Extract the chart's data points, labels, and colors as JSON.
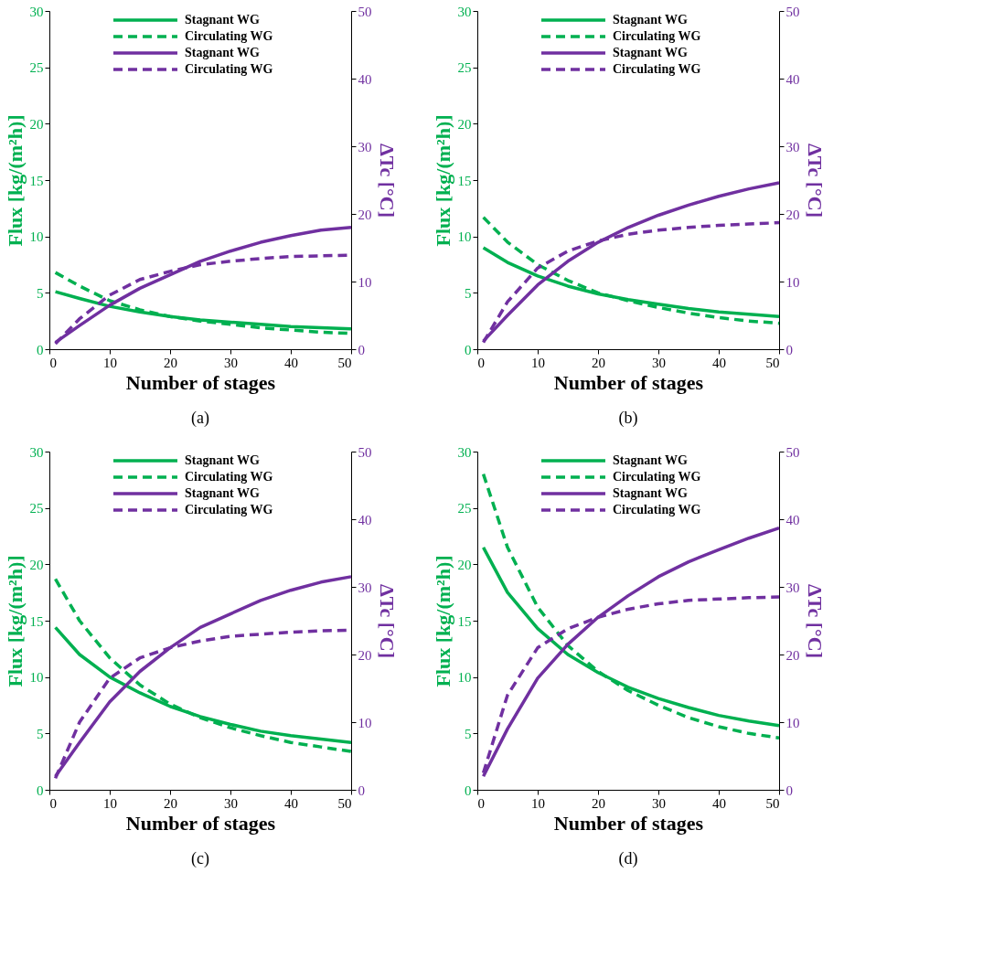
{
  "chart_data": [
    {
      "type": "line",
      "xlabel": "Number of stages",
      "ylabel": "Flux [kg/(m²h)]",
      "y2label": "ΔTc [°C]",
      "annotations": [
        "(a)"
      ],
      "x": [
        1,
        5,
        10,
        15,
        20,
        25,
        30,
        35,
        40,
        45,
        50
      ],
      "xlim": [
        0,
        50
      ],
      "xticks": [
        0,
        10,
        20,
        30,
        40,
        50
      ],
      "ylim": [
        0,
        30
      ],
      "yticks": [
        0,
        5,
        10,
        15,
        20,
        25,
        30
      ],
      "y2lim": [
        0,
        50
      ],
      "y2ticks": [
        0,
        10,
        20,
        30,
        40,
        50
      ],
      "grid": false,
      "legend": "top",
      "series": [
        {
          "name": "Stagnant WG",
          "color": "#00b050",
          "line_style": "solid",
          "values": [
            5.1,
            4.5,
            3.8,
            3.3,
            2.9,
            2.6,
            2.4,
            2.2,
            2.0,
            1.9,
            1.8
          ]
        },
        {
          "name": "Circulating WG",
          "color": "#00b050",
          "line_style": "dashed",
          "values": [
            6.8,
            5.6,
            4.3,
            3.5,
            2.9,
            2.5,
            2.2,
            1.9,
            1.7,
            1.5,
            1.4
          ]
        },
        {
          "name": "Stagnant WG",
          "color": "#7030a0",
          "line_style": "solid",
          "axis": "y2",
          "values": [
            1,
            3.5,
            6.5,
            9,
            11,
            13,
            14.5,
            15.8,
            16.8,
            17.6,
            18
          ]
        },
        {
          "name": "Circulating WG",
          "color": "#7030a0",
          "line_style": "dashed",
          "axis": "y2",
          "values": [
            0.8,
            4.5,
            8,
            10.3,
            11.5,
            12.5,
            13,
            13.4,
            13.7,
            13.8,
            13.9
          ]
        }
      ]
    },
    {
      "type": "line",
      "xlabel": "Number of stages",
      "ylabel": "Flux [kg/(m²h)]",
      "y2label": "ΔTc [°C]",
      "annotations": [
        "(b)"
      ],
      "x": [
        1,
        5,
        10,
        15,
        20,
        25,
        30,
        35,
        40,
        45,
        50
      ],
      "xlim": [
        0,
        50
      ],
      "xticks": [
        0,
        10,
        20,
        30,
        40,
        50
      ],
      "ylim": [
        0,
        30
      ],
      "yticks": [
        0,
        5,
        10,
        15,
        20,
        25,
        30
      ],
      "y2lim": [
        0,
        50
      ],
      "y2ticks": [
        0,
        10,
        20,
        30,
        40,
        50
      ],
      "grid": false,
      "legend": "top",
      "series": [
        {
          "name": "Stagnant WG",
          "color": "#00b050",
          "line_style": "solid",
          "values": [
            9,
            7.7,
            6.5,
            5.6,
            4.9,
            4.4,
            4.0,
            3.6,
            3.3,
            3.1,
            2.9
          ]
        },
        {
          "name": "Circulating WG",
          "color": "#00b050",
          "line_style": "dashed",
          "values": [
            11.7,
            9.5,
            7.5,
            6.1,
            5.0,
            4.3,
            3.7,
            3.2,
            2.8,
            2.5,
            2.3
          ]
        },
        {
          "name": "Stagnant WG",
          "color": "#7030a0",
          "line_style": "solid",
          "axis": "y2",
          "values": [
            1.2,
            5,
            9.5,
            13,
            15.8,
            18,
            19.8,
            21.3,
            22.6,
            23.7,
            24.6
          ]
        },
        {
          "name": "Circulating WG",
          "color": "#7030a0",
          "line_style": "dashed",
          "axis": "y2",
          "values": [
            1,
            7,
            12,
            14.5,
            16,
            17,
            17.6,
            18,
            18.3,
            18.5,
            18.7
          ]
        }
      ]
    },
    {
      "type": "line",
      "xlabel": "Number of stages",
      "ylabel": "Flux [kg/(m²h)]",
      "y2label": "ΔTc [°C]",
      "annotations": [
        "(c)"
      ],
      "x": [
        1,
        5,
        10,
        15,
        20,
        25,
        30,
        35,
        40,
        45,
        50
      ],
      "xlim": [
        0,
        50
      ],
      "xticks": [
        0,
        10,
        20,
        30,
        40,
        50
      ],
      "ylim": [
        0,
        30
      ],
      "yticks": [
        0,
        5,
        10,
        15,
        20,
        25,
        30
      ],
      "y2lim": [
        0,
        50
      ],
      "y2ticks": [
        0,
        10,
        20,
        30,
        40,
        50
      ],
      "grid": false,
      "legend": "top",
      "series": [
        {
          "name": "Stagnant WG",
          "color": "#00b050",
          "line_style": "solid",
          "values": [
            14.4,
            12,
            10,
            8.6,
            7.4,
            6.5,
            5.8,
            5.2,
            4.8,
            4.5,
            4.2
          ]
        },
        {
          "name": "Circulating WG",
          "color": "#00b050",
          "line_style": "dashed",
          "values": [
            18.7,
            15,
            11.7,
            9.3,
            7.6,
            6.4,
            5.5,
            4.8,
            4.2,
            3.8,
            3.4
          ]
        },
        {
          "name": "Stagnant WG",
          "color": "#7030a0",
          "line_style": "solid",
          "axis": "y2",
          "values": [
            2,
            7,
            13,
            17.5,
            21,
            24,
            26,
            28,
            29.5,
            30.7,
            31.5
          ]
        },
        {
          "name": "Circulating WG",
          "color": "#7030a0",
          "line_style": "dashed",
          "axis": "y2",
          "values": [
            1.7,
            10,
            16.5,
            19.5,
            21,
            22,
            22.7,
            23,
            23.3,
            23.5,
            23.6
          ]
        }
      ]
    },
    {
      "type": "line",
      "xlabel": "Number of stages",
      "ylabel": "Flux [kg/(m²h)]",
      "y2label": "ΔTc [°C]",
      "annotations": [
        "(d)"
      ],
      "x": [
        1,
        5,
        10,
        15,
        20,
        25,
        30,
        35,
        40,
        45,
        50
      ],
      "xlim": [
        0,
        50
      ],
      "xticks": [
        0,
        10,
        20,
        30,
        40,
        50
      ],
      "ylim": [
        0,
        30
      ],
      "yticks": [
        0,
        5,
        10,
        15,
        20,
        25,
        30
      ],
      "y2lim": [
        0,
        50
      ],
      "y2ticks": [
        0,
        10,
        20,
        30,
        40,
        50
      ],
      "grid": false,
      "legend": "top",
      "series": [
        {
          "name": "Stagnant WG",
          "color": "#00b050",
          "line_style": "solid",
          "values": [
            21.5,
            17.5,
            14.3,
            12,
            10.4,
            9.1,
            8.1,
            7.3,
            6.6,
            6.1,
            5.7
          ]
        },
        {
          "name": "Circulating WG",
          "color": "#00b050",
          "line_style": "dashed",
          "values": [
            28,
            21.5,
            16.2,
            12.8,
            10.5,
            8.8,
            7.5,
            6.4,
            5.6,
            5,
            4.6
          ]
        },
        {
          "name": "Stagnant WG",
          "color": "#7030a0",
          "line_style": "solid",
          "axis": "y2",
          "values": [
            2,
            9,
            16.5,
            21.5,
            25.5,
            28.7,
            31.5,
            33.7,
            35.5,
            37.2,
            38.7
          ]
        },
        {
          "name": "Circulating WG",
          "color": "#7030a0",
          "line_style": "dashed",
          "axis": "y2",
          "values": [
            2.5,
            14,
            21,
            23.8,
            25.5,
            26.7,
            27.5,
            28,
            28.2,
            28.4,
            28.5
          ]
        }
      ]
    }
  ]
}
